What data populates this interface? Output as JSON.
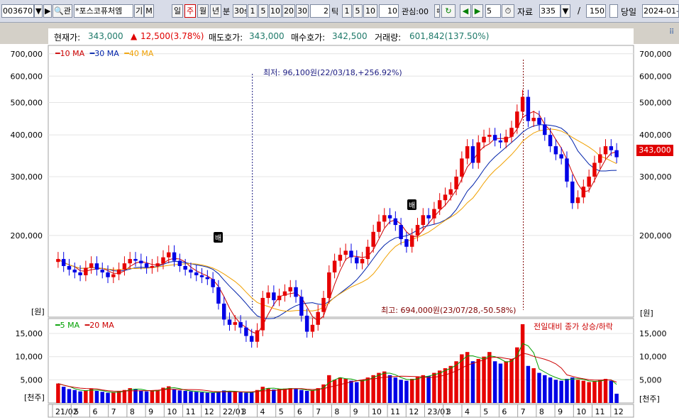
{
  "toolbar": {
    "code": "003670",
    "name": "*포스코퓨처엠",
    "btn_gi": "기",
    "btn_m": "M",
    "btn_search_icon": "search-icon",
    "periods": [
      "일",
      "주",
      "월",
      "년"
    ],
    "selected_period": "주",
    "label_bun": "분",
    "bun_options": [
      "30s",
      "1",
      "5",
      "10",
      "20",
      "30"
    ],
    "tick_value": "2",
    "label_tick": "틱",
    "tick_options": [
      "1",
      "5",
      "10"
    ],
    "tick_input": "10",
    "label_watch": "관심:00",
    "nav_value": "5",
    "label_data": "자료",
    "data_count": "335",
    "data_total": "150",
    "label_today": "당일",
    "date": "2024-01-"
  },
  "info": {
    "price_label": "현재가:",
    "price": "343,000",
    "change": "12,500(3.78%)",
    "ask_label": "매도호가:",
    "ask": "343,000",
    "bid_label": "매수호가:",
    "bid": "342,500",
    "volume_label": "거래량:",
    "volume": "601,842(137.50%)"
  },
  "colors": {
    "up": "#e60000",
    "down": "#0000e6",
    "ma10": "#cc0000",
    "ma30": "#0022aa",
    "ma40": "#f0a000",
    "vma5": "#00a000",
    "vma20": "#cc0000"
  },
  "legend": {
    "ma10": "10 MA",
    "ma30": "30 MA",
    "ma40": "40 MA",
    "vma5": "5 MA",
    "vma20": "20 MA"
  },
  "annotations": {
    "low": "최저: 96,100원(22/03/18,+256.92%)",
    "high": "최고: 694,000원(23/07/28,-50.58%)",
    "marker": "배",
    "vol_note": "전일대비 종가 상승/하락"
  },
  "axes": {
    "price_unit": "[원]",
    "volume_unit": "[천주]",
    "price_ticks": [
      "700,000",
      "600,000",
      "500,000",
      "400,000",
      "300,000",
      "200,000"
    ],
    "volume_ticks": [
      "15,000",
      "10,000",
      "5,000"
    ],
    "current_price_tag": "343,000",
    "x_labels": [
      "21/02",
      "5",
      "6",
      "7",
      "8",
      "9",
      "10",
      "11",
      "12",
      "22/01",
      "3",
      "4",
      "5",
      "6",
      "7",
      "8",
      "9",
      "10",
      "11",
      "12",
      "23/01",
      "3",
      "4",
      "5",
      "6",
      "7",
      "8",
      "9",
      "10",
      "11",
      "12"
    ]
  },
  "chart_data": {
    "type": "candlestick",
    "price_scale": "log",
    "price_range": [
      115000,
      720000
    ],
    "volume_range": [
      0,
      17000
    ],
    "closes": [
      170000,
      162000,
      158000,
      155000,
      152000,
      160000,
      165000,
      158000,
      155000,
      150000,
      153000,
      158000,
      165000,
      170000,
      168000,
      165000,
      160000,
      162000,
      165000,
      172000,
      178000,
      168000,
      162000,
      158000,
      155000,
      152000,
      150000,
      148000,
      140000,
      125000,
      112000,
      108000,
      110000,
      106000,
      100000,
      96100,
      104000,
      130000,
      135000,
      128000,
      132000,
      136000,
      140000,
      131000,
      115000,
      103000,
      108000,
      118000,
      130000,
      155000,
      168000,
      175000,
      180000,
      172000,
      165000,
      170000,
      185000,
      205000,
      220000,
      230000,
      225000,
      215000,
      195000,
      185000,
      200000,
      215000,
      230000,
      225000,
      240000,
      255000,
      265000,
      275000,
      300000,
      340000,
      370000,
      330000,
      380000,
      395000,
      400000,
      385000,
      380000,
      395000,
      420000,
      470000,
      520000,
      440000,
      450000,
      430000,
      400000,
      370000,
      350000,
      340000,
      290000,
      250000,
      260000,
      280000,
      300000,
      330000,
      350000,
      370000,
      360000,
      343000
    ],
    "volumes": [
      4200,
      3500,
      3000,
      2800,
      2500,
      2700,
      3100,
      2600,
      2400,
      2200,
      2300,
      2500,
      2800,
      3200,
      3000,
      2700,
      2500,
      2600,
      2800,
      3300,
      3600,
      3000,
      2700,
      2600,
      2500,
      2400,
      2300,
      2200,
      2300,
      2500,
      2700,
      2500,
      2400,
      2300,
      2200,
      2400,
      2800,
      3500,
      3200,
      2900,
      3000,
      3100,
      3200,
      3000,
      2800,
      2600,
      2700,
      3200,
      4000,
      6000,
      5000,
      5500,
      5200,
      4800,
      4500,
      5000,
      5500,
      6000,
      6500,
      6800,
      6000,
      5500,
      5000,
      4800,
      5200,
      5600,
      6000,
      5800,
      6500,
      7000,
      7500,
      8000,
      9000,
      10500,
      11000,
      9000,
      9500,
      10000,
      11000,
      9000,
      8500,
      9000,
      9500,
      12000,
      17000,
      8000,
      7500,
      6500,
      6000,
      5500,
      5000,
      4800,
      5200,
      5500,
      5000,
      4800,
      4500,
      4700,
      5000,
      5200,
      4800,
      2000
    ]
  }
}
